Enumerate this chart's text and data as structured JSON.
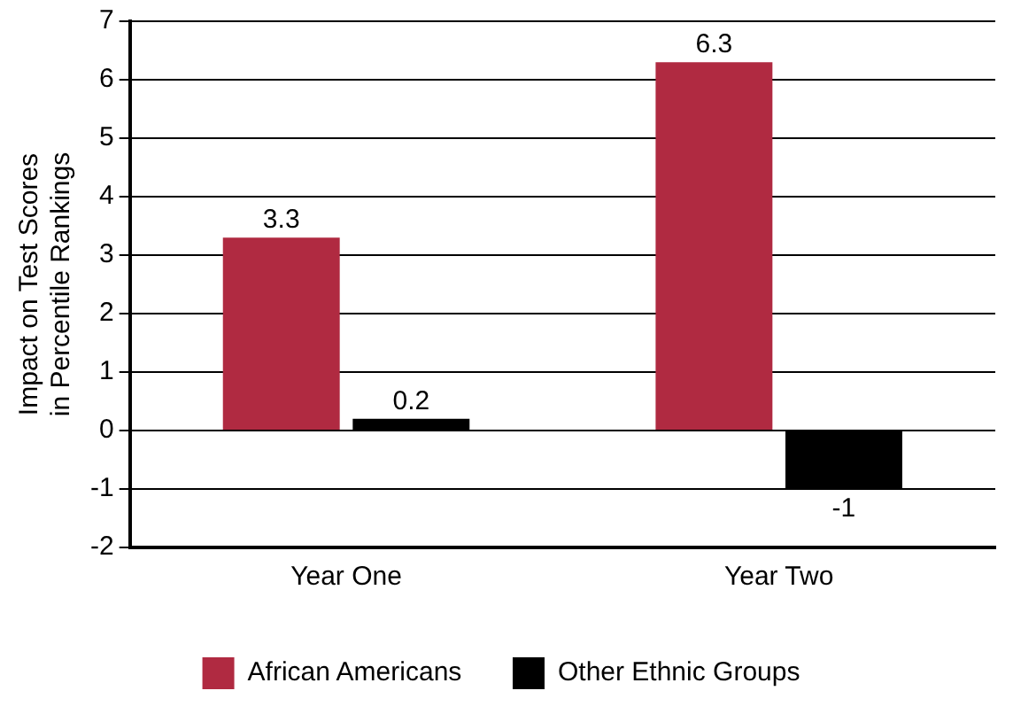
{
  "chart_data": {
    "type": "bar",
    "ylabel": "Impact on Test Scores\nin Percentile Rankings",
    "categories": [
      "Year One",
      "Year Two"
    ],
    "series": [
      {
        "name": "African Americans",
        "color": "#b02a41",
        "values": [
          3.3,
          6.3
        ]
      },
      {
        "name": "Other Ethnic Groups",
        "color": "#000000",
        "values": [
          0.2,
          -1
        ]
      }
    ],
    "ylim": [
      -2,
      7
    ],
    "yticks": [
      -2,
      -1,
      0,
      1,
      2,
      3,
      4,
      5,
      6,
      7
    ],
    "grid": "y",
    "legend": "bottom",
    "data_labels": true
  }
}
